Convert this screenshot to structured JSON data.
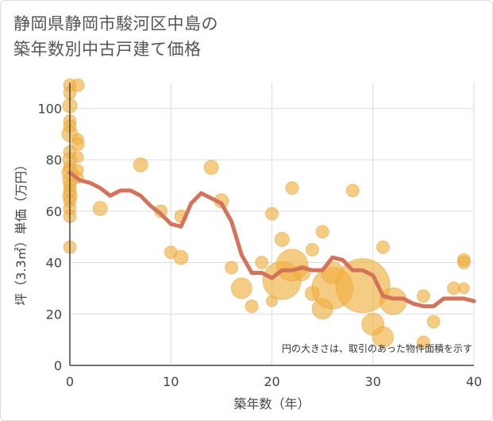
{
  "title_lines": [
    "静岡県静岡市駿河区中島の",
    "築年数別中古戸建て価格"
  ],
  "colors": {
    "bubble": "#f0b040",
    "bubble_stroke": "#e8a030",
    "line": "#d4735a",
    "grid": "#d5dde8",
    "axis": "#444444"
  },
  "chart_data": {
    "type": "scatter",
    "xlabel": "築年数（年）",
    "ylabel": "坪（3.3㎡）単価（万円）",
    "xlim": [
      0,
      40
    ],
    "ylim": [
      0,
      110
    ],
    "x_ticks": [
      0,
      10,
      20,
      30,
      40
    ],
    "y_ticks": [
      0,
      20,
      40,
      60,
      80,
      100
    ],
    "note": "円の大きさは、取引のあった物件面積を示す",
    "points": [
      {
        "x": 0,
        "y": 109,
        "s": 8
      },
      {
        "x": 0,
        "y": 106,
        "s": 8
      },
      {
        "x": 0,
        "y": 101,
        "s": 9
      },
      {
        "x": 0,
        "y": 95,
        "s": 8
      },
      {
        "x": 0,
        "y": 93,
        "s": 8
      },
      {
        "x": 0,
        "y": 90,
        "s": 10
      },
      {
        "x": 0,
        "y": 83,
        "s": 8
      },
      {
        "x": 0,
        "y": 80,
        "s": 9
      },
      {
        "x": 0,
        "y": 77,
        "s": 8
      },
      {
        "x": 0,
        "y": 75,
        "s": 10
      },
      {
        "x": 0,
        "y": 72,
        "s": 9
      },
      {
        "x": 0,
        "y": 70,
        "s": 8
      },
      {
        "x": 0,
        "y": 68,
        "s": 8
      },
      {
        "x": 0,
        "y": 66,
        "s": 9
      },
      {
        "x": 0,
        "y": 64,
        "s": 8
      },
      {
        "x": 0,
        "y": 61,
        "s": 8
      },
      {
        "x": 0,
        "y": 58,
        "s": 8
      },
      {
        "x": 0,
        "y": 46,
        "s": 8
      },
      {
        "x": 0.8,
        "y": 109,
        "s": 8
      },
      {
        "x": 0.8,
        "y": 88,
        "s": 7
      },
      {
        "x": 0.8,
        "y": 86,
        "s": 8
      },
      {
        "x": 0.8,
        "y": 81,
        "s": 7
      },
      {
        "x": 0.8,
        "y": 76,
        "s": 7
      },
      {
        "x": 0.8,
        "y": 73,
        "s": 7
      },
      {
        "x": 3,
        "y": 61,
        "s": 9
      },
      {
        "x": 7,
        "y": 78,
        "s": 9
      },
      {
        "x": 9,
        "y": 60,
        "s": 8
      },
      {
        "x": 10,
        "y": 44,
        "s": 8
      },
      {
        "x": 11,
        "y": 42,
        "s": 9
      },
      {
        "x": 11,
        "y": 58,
        "s": 8
      },
      {
        "x": 14,
        "y": 77,
        "s": 9
      },
      {
        "x": 15,
        "y": 64,
        "s": 9
      },
      {
        "x": 16,
        "y": 38,
        "s": 8
      },
      {
        "x": 17,
        "y": 30,
        "s": 13
      },
      {
        "x": 18,
        "y": 23,
        "s": 8
      },
      {
        "x": 19,
        "y": 40,
        "s": 8
      },
      {
        "x": 20,
        "y": 59,
        "s": 8
      },
      {
        "x": 20,
        "y": 25,
        "s": 7
      },
      {
        "x": 21,
        "y": 49,
        "s": 9
      },
      {
        "x": 21,
        "y": 33,
        "s": 24
      },
      {
        "x": 22,
        "y": 39,
        "s": 20
      },
      {
        "x": 22,
        "y": 69,
        "s": 8
      },
      {
        "x": 23,
        "y": 36,
        "s": 10
      },
      {
        "x": 24,
        "y": 45,
        "s": 8
      },
      {
        "x": 24,
        "y": 28,
        "s": 9
      },
      {
        "x": 25,
        "y": 52,
        "s": 8
      },
      {
        "x": 25,
        "y": 22,
        "s": 13
      },
      {
        "x": 26,
        "y": 36,
        "s": 14
      },
      {
        "x": 26,
        "y": 30,
        "s": 26
      },
      {
        "x": 28,
        "y": 68,
        "s": 8
      },
      {
        "x": 29,
        "y": 31,
        "s": 34
      },
      {
        "x": 30,
        "y": 16,
        "s": 14
      },
      {
        "x": 31,
        "y": 11,
        "s": 13
      },
      {
        "x": 31,
        "y": 46,
        "s": 8
      },
      {
        "x": 32,
        "y": 25,
        "s": 17
      },
      {
        "x": 35,
        "y": 27,
        "s": 8
      },
      {
        "x": 35,
        "y": 9,
        "s": 8
      },
      {
        "x": 36,
        "y": 17,
        "s": 8
      },
      {
        "x": 38,
        "y": 30,
        "s": 8
      },
      {
        "x": 39,
        "y": 41,
        "s": 8
      },
      {
        "x": 39,
        "y": 40,
        "s": 8
      },
      {
        "x": 39,
        "y": 30,
        "s": 7
      }
    ],
    "trend_line": {
      "x": [
        0,
        1,
        2,
        3,
        4,
        5,
        6,
        7,
        8,
        9,
        10,
        11,
        12,
        13,
        14,
        15,
        16,
        17,
        18,
        19,
        20,
        21,
        22,
        23,
        24,
        25,
        26,
        27,
        28,
        29,
        30,
        31,
        32,
        33,
        34,
        35,
        36,
        37,
        38,
        39,
        40
      ],
      "y": [
        75,
        72,
        71,
        69,
        66,
        68,
        68,
        66,
        62,
        59,
        55,
        54,
        63,
        67,
        65,
        63,
        56,
        43,
        36,
        36,
        34,
        37,
        37,
        38,
        37,
        37,
        42,
        41,
        37,
        37,
        35,
        27,
        26,
        26,
        24,
        23,
        23,
        26,
        26,
        26,
        25
      ]
    }
  }
}
